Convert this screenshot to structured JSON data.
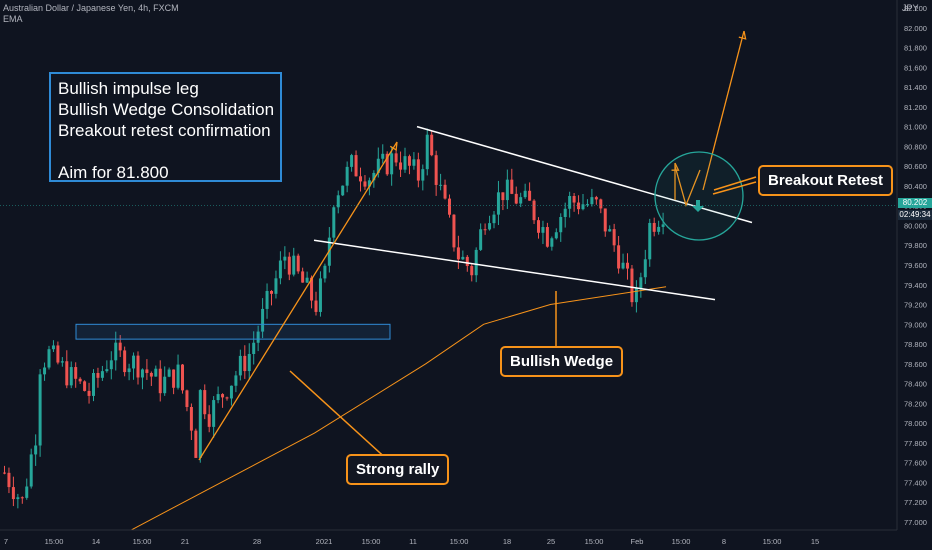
{
  "header": {
    "symbol_line": "Australian Dollar / Japanese Yen, 4h, FXCM",
    "indicator": "EMA",
    "currency": "JPY"
  },
  "annotation": {
    "lines": [
      "Bullish impulse leg",
      "Bullish Wedge Consolidation",
      "Breakout retest confirmation",
      "",
      "Aim for 81.800"
    ]
  },
  "callouts": {
    "breakout": "Breakout Retest",
    "wedge": "Bullish Wedge",
    "rally": "Strong rally"
  },
  "price_scale": {
    "current_price": "80.202",
    "countdown": "02:49:34"
  },
  "colors": {
    "background": "#0f1420",
    "up_candle": "#26a69a",
    "down_candle": "#ef5350",
    "orange": "#f7931a",
    "box_blue": "#2f8bd6",
    "circle_teal": "#26a69a",
    "wedge_lines": "#ffffff"
  },
  "chart_data": {
    "type": "candlestick",
    "title": "Australian Dollar / Japanese Yen, 4h, FXCM",
    "y_axis": {
      "ticks": [
        "77.000",
        "77.200",
        "77.400",
        "77.600",
        "77.800",
        "78.000",
        "78.200",
        "78.400",
        "78.600",
        "78.800",
        "79.000",
        "79.200",
        "79.400",
        "79.600",
        "79.800",
        "80.000",
        "80.200",
        "80.400",
        "80.600",
        "80.800",
        "81.000",
        "81.200",
        "81.400",
        "81.600",
        "81.800",
        "82.000",
        "82.200"
      ],
      "range": [
        76.9,
        82.3
      ]
    },
    "x_axis": {
      "ticks": [
        "7",
        "15:00",
        "14",
        "15:00",
        "21",
        "28",
        "2021",
        "15:00",
        "11",
        "15:00",
        "18",
        "25",
        "15:00",
        "Feb",
        "15:00",
        "8",
        "15:00",
        "15"
      ]
    },
    "series": [
      {
        "type": "price_path",
        "points": [
          [
            0,
            77.5
          ],
          [
            4,
            77.2
          ],
          [
            7,
            77.9
          ],
          [
            8,
            78.6
          ],
          [
            10,
            78.7
          ],
          [
            14,
            78.5
          ],
          [
            19,
            78.3
          ],
          [
            24,
            78.7
          ],
          [
            30,
            78.6
          ],
          [
            35,
            78.4
          ],
          [
            39,
            78.5
          ],
          [
            42,
            78.0
          ],
          [
            43,
            77.75
          ],
          [
            44,
            78.3
          ],
          [
            46,
            78.1
          ],
          [
            52,
            78.5
          ],
          [
            55,
            78.7
          ],
          [
            63,
            79.7
          ],
          [
            70,
            79.2
          ],
          [
            72,
            79.5
          ],
          [
            74,
            80.3
          ],
          [
            78,
            80.6
          ],
          [
            82,
            80.5
          ],
          [
            88,
            80.7
          ],
          [
            93,
            80.5
          ],
          [
            95,
            80.85
          ],
          [
            100,
            80.0
          ],
          [
            102,
            79.7
          ],
          [
            105,
            79.55
          ],
          [
            108,
            80.1
          ],
          [
            112,
            80.35
          ],
          [
            118,
            80.2
          ],
          [
            122,
            79.9
          ],
          [
            127,
            80.25
          ],
          [
            133,
            80.2
          ],
          [
            138,
            79.7
          ],
          [
            141,
            79.3
          ],
          [
            142,
            79.25
          ],
          [
            143,
            79.5
          ],
          [
            145,
            80.0
          ],
          [
            149,
            80.2
          ]
        ]
      },
      {
        "name": "EMA",
        "type": "line",
        "points": [
          [
            28,
            76.9
          ],
          [
            70,
            77.9
          ],
          [
            95,
            78.6
          ],
          [
            108,
            79.0
          ],
          [
            123,
            79.2
          ],
          [
            149,
            79.38
          ]
        ]
      }
    ],
    "annotations": {
      "demand_zone": [
        78.85,
        79.0
      ],
      "wedge_upper": [
        [
          90,
          81.0
        ],
        [
          158,
          80.03
        ]
      ],
      "wedge_lower": [
        [
          69,
          79.85
        ],
        [
          151,
          79.25
        ]
      ],
      "impulse_arrow": [
        [
          43,
          77.65
        ],
        [
          87,
          80.9
        ]
      ],
      "projection": [
        [
          147,
          80.4
        ],
        [
          159,
          82.0
        ]
      ],
      "target": 81.8
    },
    "grid": false,
    "legend": "none"
  }
}
